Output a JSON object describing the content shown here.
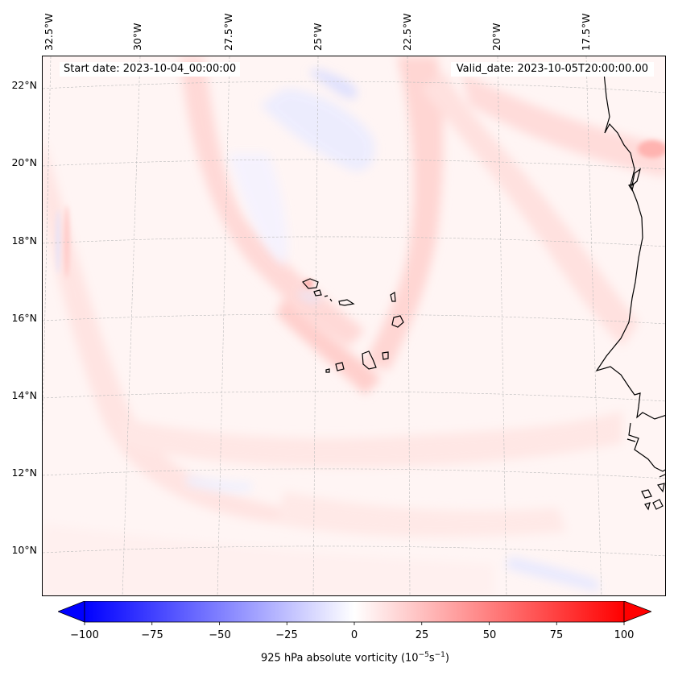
{
  "map": {
    "start_date": "Start date: 2023-10-04_00:00:00",
    "valid_date": "Valid_date: 2023-10-05T20:00:00.00",
    "lat_labels": [
      "22°N",
      "20°N",
      "18°N",
      "16°N",
      "14°N",
      "12°N",
      "10°N"
    ],
    "lon_labels": [
      "32.5°W",
      "30°W",
      "27.5°W",
      "25°W",
      "22.5°W",
      "20°W",
      "17.5°W"
    ],
    "extent": {
      "lon_min": -32.7,
      "lon_max": -15.9,
      "lat_min": 8.8,
      "lat_max": 22.8
    },
    "field": "925 hPa absolute vorticity",
    "land_features": [
      "Cape Verde islands",
      "West African coastline"
    ]
  },
  "colorbar": {
    "label_prefix": "925 hPa absolute vorticity (10",
    "label_exp1": "−5",
    "label_mid": "s",
    "label_exp2": "−1",
    "label_suffix": ")",
    "ticks": [
      "−100",
      "−75",
      "−50",
      "−25",
      "0",
      "25",
      "50",
      "75",
      "100"
    ],
    "min": -100,
    "max": 100,
    "colormap": "bwr",
    "extend": "both",
    "low_color": "#0000ff",
    "mid_color": "#ffffff",
    "high_color": "#ff0000"
  }
}
